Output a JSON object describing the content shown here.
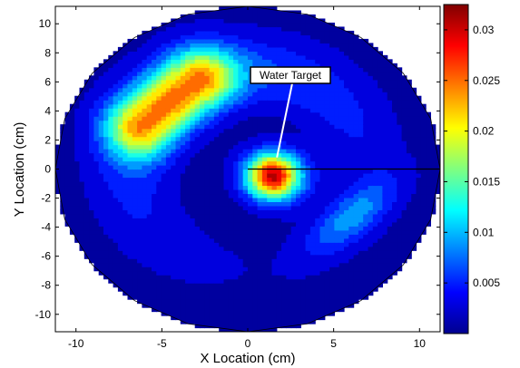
{
  "chart_data": {
    "type": "heatmap",
    "subtype": "filled-contour",
    "title": "",
    "xlabel": "X Location (cm)",
    "ylabel": "Y Location (cm)",
    "xlim": [
      -11.2,
      11.2
    ],
    "ylim": [
      -11.2,
      11.2
    ],
    "xticks": [
      -10,
      -5,
      0,
      5,
      10
    ],
    "yticks": [
      -10,
      -8,
      -6,
      -4,
      -2,
      0,
      2,
      4,
      6,
      8,
      10
    ],
    "colorbar": {
      "colormap": "jet",
      "range": [
        0,
        0.0325
      ],
      "ticks": [
        0.005,
        0.01,
        0.015,
        0.02,
        0.025,
        0.03
      ],
      "tick_labels": [
        "0.005",
        "0.01",
        "0.015",
        "0.02",
        "0.025",
        "0.03"
      ]
    },
    "domain": {
      "shape": "circle",
      "center": [
        0,
        0
      ],
      "radius": 11.2
    },
    "features": [
      {
        "kind": "peak",
        "center_x": 1.6,
        "center_y": -0.5,
        "value": 0.0325
      },
      {
        "kind": "crescent-ridge",
        "from": [
          -6.2,
          3.0
        ],
        "to": [
          -2.8,
          6.2
        ],
        "value": 0.021
      },
      {
        "kind": "minor-lobe",
        "center": [
          6.0,
          -3.3
        ],
        "value": 0.009
      }
    ],
    "annotations": [
      {
        "text": "Water Target",
        "points_to": [
          1.7,
          0.8
        ]
      }
    ],
    "source_line": {
      "from": [
        0,
        0
      ],
      "to": [
        11.2,
        0
      ]
    },
    "grid": false,
    "legend": "none"
  }
}
